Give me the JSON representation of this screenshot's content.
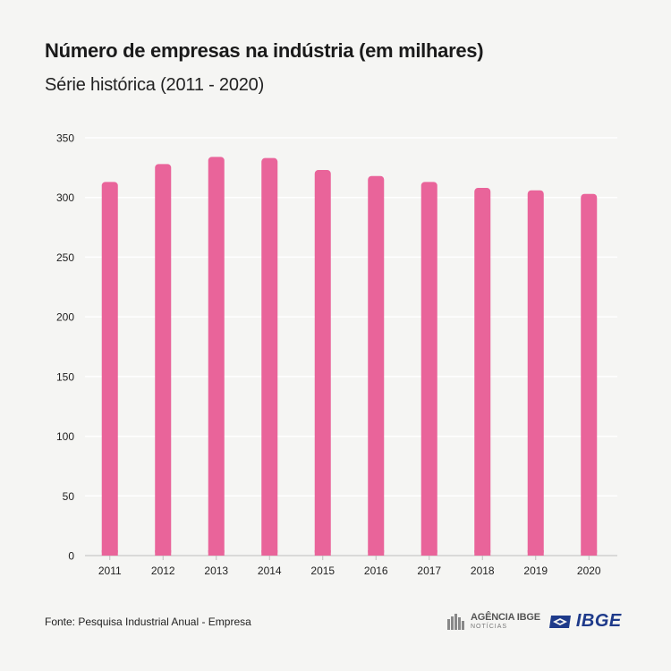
{
  "chart_data": {
    "type": "bar",
    "title": "Número de empresas na indústria (em milhares)",
    "subtitle": "Série histórica (2011 - 2020)",
    "categories": [
      "2011",
      "2012",
      "2013",
      "2014",
      "2015",
      "2016",
      "2017",
      "2018",
      "2019",
      "2020"
    ],
    "values": [
      313,
      328,
      334,
      333,
      323,
      318,
      313,
      308,
      306,
      303
    ],
    "xlabel": "",
    "ylabel": "",
    "ylim": [
      0,
      350
    ],
    "yticks": [
      0,
      50,
      100,
      150,
      200,
      250,
      300,
      350
    ],
    "grid": true,
    "bar_color": "#e9649a"
  },
  "footer": {
    "source": "Fonte: Pesquisa Industrial Anual - Empresa",
    "agencia_name": "AGÊNCIA IBGE",
    "agencia_sub": "NOTÍCIAS",
    "ibge": "IBGE"
  }
}
